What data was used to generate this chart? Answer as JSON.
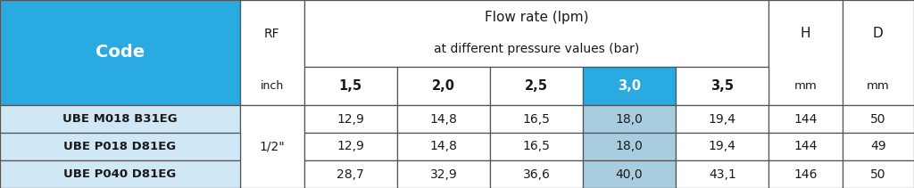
{
  "title_row1": "Flow rate (lpm)",
  "title_row2": "at different pressure values (bar)",
  "col_header_code": "Code",
  "col_header_rf": "RF",
  "col_header_rf_unit": "inch",
  "col_header_h": "H",
  "col_header_d": "D",
  "col_header_h_unit": "mm",
  "col_header_d_unit": "mm",
  "pressure_labels": [
    "1,5",
    "2,0",
    "2,5",
    "3,0",
    "3,5"
  ],
  "highlight_pressure_idx": 3,
  "rf_merged_value": "1/2\"",
  "rows": [
    {
      "code": "UBE M018 B31EG",
      "values": [
        "12,9",
        "14,8",
        "16,5",
        "18,0",
        "19,4"
      ],
      "H": "144",
      "D": "50"
    },
    {
      "code": "UBE P018 D81EG",
      "values": [
        "12,9",
        "14,8",
        "16,5",
        "18,0",
        "19,4"
      ],
      "H": "144",
      "D": "49"
    },
    {
      "code": "UBE P040 D81EG",
      "values": [
        "28,7",
        "32,9",
        "36,6",
        "40,0",
        "43,1"
      ],
      "H": "146",
      "D": "50"
    }
  ],
  "color_blue_header": "#29ABE2",
  "color_blue_highlight": "#29ABE2",
  "color_light_blue_row": "#D0E8F5",
  "color_light_blue_highlight_cell": "#A8CCE0",
  "color_white": "#FFFFFF",
  "color_border": "#555555",
  "color_header_text_white": "#FFFFFF",
  "color_dark_text": "#1a1a1a",
  "fig_width": 10.24,
  "fig_height": 2.11
}
